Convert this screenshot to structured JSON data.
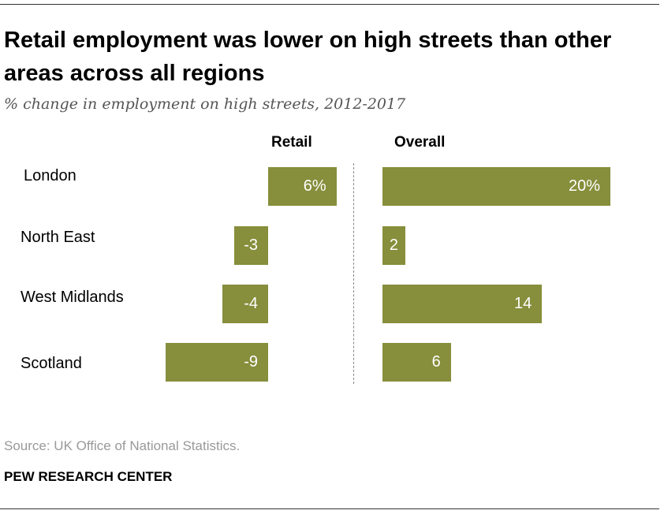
{
  "title": "Retail employment was lower on high streets than other areas across all regions",
  "subtitle": "% change in employment on high streets, 2012-2017",
  "source": "Source: UK Office of National Statistics.",
  "brand": "PEW RESEARCH CENTER",
  "chart_data": {
    "type": "bar",
    "orientation": "horizontal",
    "categories": [
      "London",
      "North East",
      "West Midlands",
      "Scotland"
    ],
    "series": [
      {
        "name": "Retail",
        "values": [
          6,
          -3,
          -4,
          -9
        ],
        "labels": [
          "6%",
          "-3",
          "-4",
          "-9"
        ]
      },
      {
        "name": "Overall",
        "values": [
          20,
          2,
          14,
          6
        ],
        "labels": [
          "20%",
          "2",
          "14",
          "6"
        ]
      }
    ],
    "bar_color": "#878e3c",
    "grid": false
  }
}
